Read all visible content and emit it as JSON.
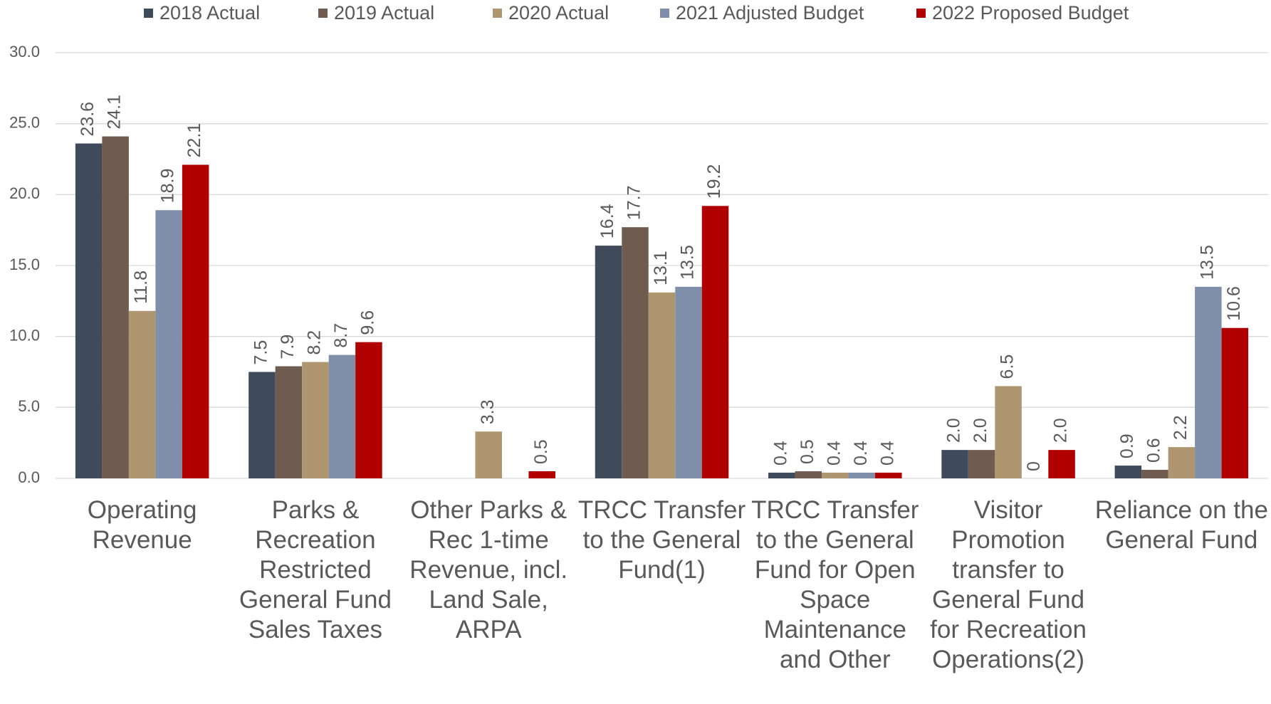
{
  "chart_data": {
    "type": "bar",
    "categories": [
      "Operating Revenue",
      "Parks & Recreation Restricted General Fund Sales Taxes",
      "Other Parks & Rec 1-time Revenue, incl. Land Sale, ARPA",
      "TRCC Transfer to the General Fund(1)",
      "TRCC Transfer to the General Fund for Open Space Maintenance and Other",
      "Visitor Promotion transfer to General Fund for Recreation Operations(2)",
      "Reliance on the General Fund"
    ],
    "series": [
      {
        "name": "2018 Actual",
        "color": "#3f4b5b",
        "values": [
          23.6,
          7.5,
          null,
          16.4,
          0.4,
          2.0,
          0.9
        ],
        "value_labels": [
          "23.6",
          "7.5",
          null,
          "16.4",
          "0.4",
          "2.0",
          "0.9"
        ]
      },
      {
        "name": "2019 Actual",
        "color": "#6f5b4f",
        "values": [
          24.1,
          7.9,
          null,
          17.7,
          0.5,
          2.0,
          0.6
        ],
        "value_labels": [
          "24.1",
          "7.9",
          null,
          "17.7",
          "0.5",
          "2.0",
          "0.6"
        ]
      },
      {
        "name": "2020 Actual",
        "color": "#ad9670",
        "values": [
          11.8,
          8.2,
          3.3,
          13.1,
          0.4,
          6.5,
          2.2
        ],
        "value_labels": [
          "11.8",
          "8.2",
          "3.3",
          "13.1",
          "0.4",
          "6.5",
          "2.2"
        ]
      },
      {
        "name": "2021 Adjusted Budget",
        "color": "#7f8fa9",
        "values": [
          18.9,
          8.7,
          null,
          13.5,
          0.4,
          0,
          13.5
        ],
        "value_labels": [
          "18.9",
          "8.7",
          null,
          "13.5",
          "0.4",
          "0",
          "13.5"
        ]
      },
      {
        "name": "2022 Proposed Budget",
        "color": "#b00000",
        "values": [
          22.1,
          9.6,
          0.5,
          19.2,
          0.4,
          2.0,
          10.6
        ],
        "value_labels": [
          "22.1",
          "9.6",
          "0.5",
          "19.2",
          "0.4",
          "2.0",
          "10.6"
        ]
      }
    ],
    "ylim": [
      0,
      30
    ],
    "yticks": [
      {
        "value": 0,
        "label": "0.0"
      },
      {
        "value": 5,
        "label": "5.0"
      },
      {
        "value": 10,
        "label": "10.0"
      },
      {
        "value": 15,
        "label": "15.0"
      },
      {
        "value": 20,
        "label": "20.0"
      },
      {
        "value": 25,
        "label": "25.0"
      },
      {
        "value": 30,
        "label": "30.0"
      }
    ],
    "grid": true,
    "legend": "top"
  }
}
